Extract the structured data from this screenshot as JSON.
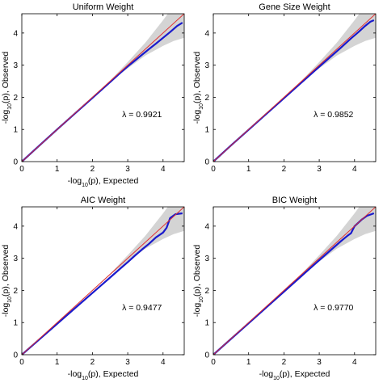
{
  "chart_data": [
    {
      "type": "line",
      "title": "Uniform Weight",
      "xlabel": "-log10(p), Expected",
      "ylabel": "-log10(p), Observed",
      "xlim": [
        0,
        4.6
      ],
      "ylim": [
        0,
        4.6
      ],
      "xticks": [
        "0",
        "1",
        "2",
        "3",
        "4"
      ],
      "yticks": [
        "0",
        "1",
        "2",
        "3",
        "4"
      ],
      "annotation": "λ = 0.9921",
      "series": [
        {
          "role": "observed",
          "x": [
            0,
            0.5,
            1,
            1.5,
            2,
            2.5,
            2.8,
            3.0,
            3.2,
            3.4,
            3.6,
            3.8,
            4.0,
            4.2,
            4.4,
            4.55
          ],
          "y": [
            0,
            0.5,
            1,
            1.49,
            1.98,
            2.47,
            2.77,
            2.96,
            3.14,
            3.32,
            3.5,
            3.67,
            3.85,
            4.03,
            4.22,
            4.32
          ]
        },
        {
          "role": "expected",
          "x": [
            0,
            4.6
          ],
          "y": [
            0,
            4.6
          ]
        }
      ],
      "band": {
        "x": [
          0,
          2.5,
          3.0,
          3.5,
          4.0,
          4.3,
          4.6
        ],
        "lower": [
          0,
          2.48,
          2.9,
          3.3,
          3.6,
          3.75,
          3.85
        ],
        "upper": [
          0,
          2.52,
          3.1,
          3.7,
          4.4,
          4.85,
          5.2
        ]
      },
      "colors": {
        "observed": "#1a1acc",
        "expected": "#e03030",
        "band": "#d4d4d4"
      }
    },
    {
      "type": "line",
      "title": "Gene Size Weight",
      "xlabel": "",
      "ylabel": "-log10(p), Observed",
      "xlim": [
        0,
        4.6
      ],
      "ylim": [
        0,
        4.6
      ],
      "xticks": [
        "0",
        "1",
        "2",
        "3",
        "4"
      ],
      "yticks": [
        "0",
        "1",
        "2",
        "3",
        "4"
      ],
      "annotation": "λ = 0.9852",
      "series": [
        {
          "role": "observed",
          "x": [
            0,
            0.5,
            1,
            1.5,
            2,
            2.5,
            3.0,
            3.3,
            3.6,
            3.9,
            4.1,
            4.3,
            4.45,
            4.55
          ],
          "y": [
            0,
            0.5,
            0.99,
            1.48,
            1.97,
            2.46,
            2.95,
            3.24,
            3.53,
            3.83,
            4.02,
            4.22,
            4.35,
            4.4
          ]
        },
        {
          "role": "expected",
          "x": [
            0,
            4.6
          ],
          "y": [
            0,
            4.6
          ]
        }
      ],
      "band": {
        "x": [
          0,
          2.5,
          3.0,
          3.5,
          4.0,
          4.3,
          4.6
        ],
        "lower": [
          0,
          2.48,
          2.9,
          3.3,
          3.6,
          3.75,
          3.85
        ],
        "upper": [
          0,
          2.52,
          3.1,
          3.7,
          4.4,
          4.85,
          5.2
        ]
      },
      "colors": {
        "observed": "#1a1acc",
        "expected": "#e03030",
        "band": "#d4d4d4"
      }
    },
    {
      "type": "line",
      "title": "AIC Weight",
      "xlabel": "-log10(p), Expected",
      "ylabel": "-log10(p), Observed",
      "xlim": [
        0,
        4.6
      ],
      "ylim": [
        0,
        4.6
      ],
      "xticks": [
        "0",
        "1",
        "2",
        "3",
        "4"
      ],
      "yticks": [
        "0",
        "1",
        "2",
        "3",
        "4"
      ],
      "annotation": "λ = 0.9477",
      "series": [
        {
          "role": "observed",
          "x": [
            0,
            0.5,
            1,
            1.5,
            2,
            2.5,
            2.8,
            3.0,
            3.2,
            3.4,
            3.6,
            3.8,
            4.0,
            4.1,
            4.2,
            4.35,
            4.55
          ],
          "y": [
            0,
            0.48,
            0.96,
            1.44,
            1.92,
            2.4,
            2.69,
            2.88,
            3.08,
            3.27,
            3.45,
            3.65,
            3.8,
            3.95,
            4.25,
            4.37,
            4.4
          ]
        },
        {
          "role": "expected",
          "x": [
            0,
            4.6
          ],
          "y": [
            0,
            4.6
          ]
        }
      ],
      "band": {
        "x": [
          0,
          2.5,
          3.0,
          3.5,
          4.0,
          4.3,
          4.6
        ],
        "lower": [
          0,
          2.48,
          2.9,
          3.3,
          3.6,
          3.75,
          3.85
        ],
        "upper": [
          0,
          2.52,
          3.1,
          3.7,
          4.4,
          4.85,
          5.2
        ]
      },
      "colors": {
        "observed": "#1a1acc",
        "expected": "#e03030",
        "band": "#d4d4d4"
      }
    },
    {
      "type": "line",
      "title": "BIC Weight",
      "xlabel": "-log10(p), Expected",
      "ylabel": "-log10(p), Observed",
      "xlim": [
        0,
        4.6
      ],
      "ylim": [
        0,
        4.6
      ],
      "xticks": [
        "0",
        "1",
        "2",
        "3",
        "4"
      ],
      "yticks": [
        "0",
        "1",
        "2",
        "3",
        "4"
      ],
      "annotation": "λ = 0.9770",
      "series": [
        {
          "role": "observed",
          "x": [
            0,
            0.5,
            1,
            1.5,
            2,
            2.5,
            3.0,
            3.3,
            3.6,
            3.8,
            3.9,
            4.0,
            4.2,
            4.35,
            4.55
          ],
          "y": [
            0,
            0.49,
            0.98,
            1.47,
            1.96,
            2.45,
            2.94,
            3.23,
            3.52,
            3.7,
            3.78,
            4.0,
            4.2,
            4.32,
            4.4
          ]
        },
        {
          "role": "expected",
          "x": [
            0,
            4.6
          ],
          "y": [
            0,
            4.6
          ]
        }
      ],
      "band": {
        "x": [
          0,
          2.5,
          3.0,
          3.5,
          4.0,
          4.3,
          4.6
        ],
        "lower": [
          0,
          2.48,
          2.9,
          3.3,
          3.6,
          3.75,
          3.85
        ],
        "upper": [
          0,
          2.52,
          3.1,
          3.7,
          4.4,
          4.85,
          5.2
        ]
      },
      "colors": {
        "observed": "#1a1acc",
        "expected": "#e03030",
        "band": "#d4d4d4"
      }
    }
  ]
}
